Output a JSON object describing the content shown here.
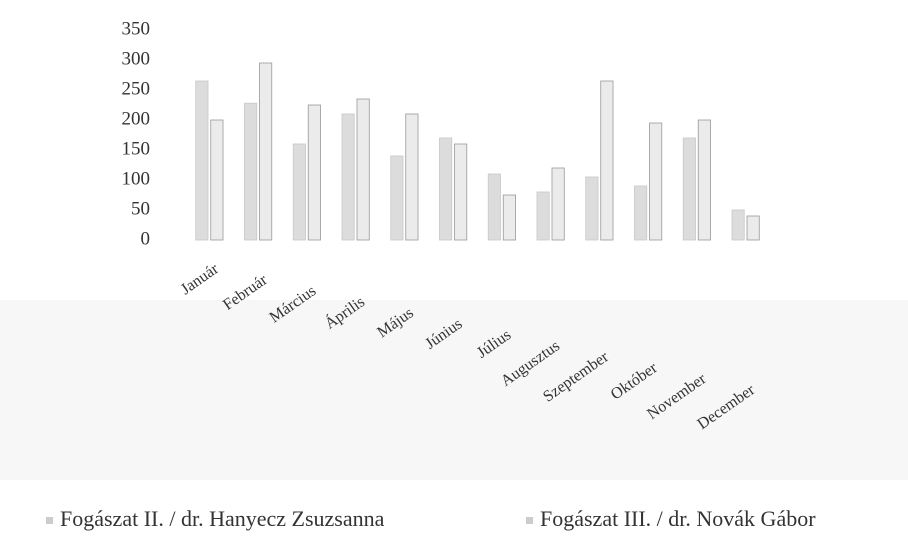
{
  "chart_data": {
    "type": "bar",
    "categories": [
      "Január",
      "Február",
      "Március",
      "Április",
      "Május",
      "Június",
      "Július",
      "Augusztus",
      "Szeptember",
      "Október",
      "November",
      "December"
    ],
    "series": [
      {
        "name": "Fogászat II. / dr. Hanyecz Zsuzsanna",
        "color": "#dcdcdc",
        "values": [
          265,
          228,
          160,
          210,
          140,
          170,
          110,
          80,
          105,
          90,
          170,
          50
        ]
      },
      {
        "name": "Fogászat III. / dr. Novák Gábor",
        "color": "#ebebeb",
        "values": [
          200,
          295,
          225,
          235,
          210,
          160,
          75,
          120,
          265,
          195,
          200,
          40
        ]
      }
    ],
    "ylim": [
      0,
      350
    ],
    "yticks": [
      0,
      50,
      100,
      150,
      200,
      250,
      300,
      350
    ],
    "grid": false
  }
}
